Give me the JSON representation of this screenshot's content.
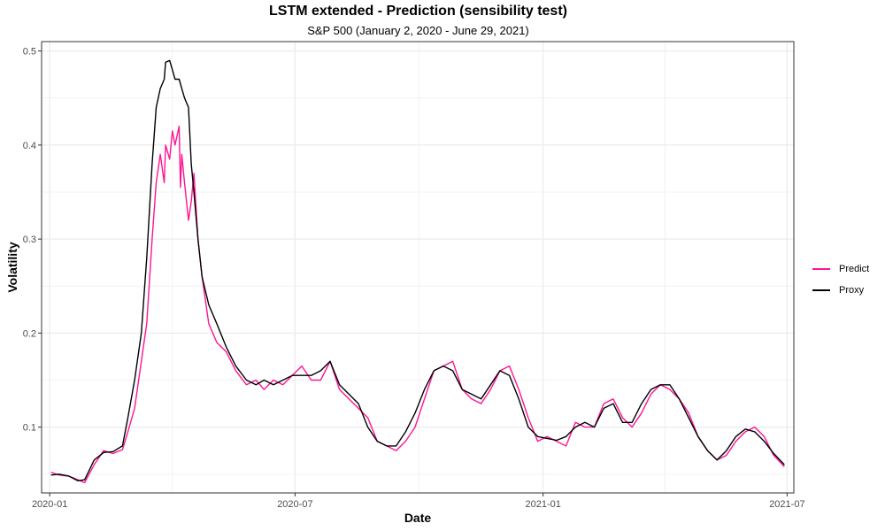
{
  "chart_data": {
    "type": "line",
    "title": "LSTM extended - Prediction (sensibility test)",
    "subtitle": "S&P 500 (January 2, 2020 - June 29, 2021)",
    "xlabel": "Date",
    "ylabel": "Volatility",
    "xlim": [
      "2019-12-26",
      "2021-07-06"
    ],
    "ylim": [
      0.03,
      0.51
    ],
    "x_ticks": [
      "2020-01-01",
      "2020-07-01",
      "2021-01-01",
      "2021-07-01"
    ],
    "x_tick_labels": [
      "2020-01",
      "2020-07",
      "2021-01",
      "2021-07"
    ],
    "y_ticks": [
      0.1,
      0.2,
      0.3,
      0.4,
      0.5
    ],
    "y_tick_labels": [
      "0.1",
      "0.2",
      "0.3",
      "0.4",
      "0.5"
    ],
    "grid": true,
    "legend_position": "right",
    "series": [
      {
        "name": "Predict",
        "color": "#ff1493",
        "points": [
          [
            "2020-01-02",
            0.052
          ],
          [
            "2020-01-08",
            0.049
          ],
          [
            "2020-01-15",
            0.048
          ],
          [
            "2020-01-22",
            0.044
          ],
          [
            "2020-01-27",
            0.041
          ],
          [
            "2020-02-03",
            0.06
          ],
          [
            "2020-02-10",
            0.075
          ],
          [
            "2020-02-17",
            0.072
          ],
          [
            "2020-02-24",
            0.076
          ],
          [
            "2020-02-28",
            0.095
          ],
          [
            "2020-03-04",
            0.12
          ],
          [
            "2020-03-09",
            0.17
          ],
          [
            "2020-03-13",
            0.21
          ],
          [
            "2020-03-17",
            0.3
          ],
          [
            "2020-03-20",
            0.36
          ],
          [
            "2020-03-23",
            0.39
          ],
          [
            "2020-03-26",
            0.36
          ],
          [
            "2020-03-27",
            0.4
          ],
          [
            "2020-03-30",
            0.385
          ],
          [
            "2020-04-01",
            0.415
          ],
          [
            "2020-04-03",
            0.4
          ],
          [
            "2020-04-06",
            0.42
          ],
          [
            "2020-04-07",
            0.355
          ],
          [
            "2020-04-08",
            0.39
          ],
          [
            "2020-04-10",
            0.36
          ],
          [
            "2020-04-13",
            0.32
          ],
          [
            "2020-04-15",
            0.34
          ],
          [
            "2020-04-17",
            0.37
          ],
          [
            "2020-04-20",
            0.3
          ],
          [
            "2020-04-23",
            0.26
          ],
          [
            "2020-04-28",
            0.21
          ],
          [
            "2020-05-04",
            0.19
          ],
          [
            "2020-05-11",
            0.18
          ],
          [
            "2020-05-18",
            0.16
          ],
          [
            "2020-05-26",
            0.145
          ],
          [
            "2020-06-02",
            0.15
          ],
          [
            "2020-06-08",
            0.14
          ],
          [
            "2020-06-15",
            0.15
          ],
          [
            "2020-06-22",
            0.145
          ],
          [
            "2020-06-29",
            0.155
          ],
          [
            "2020-07-06",
            0.165
          ],
          [
            "2020-07-13",
            0.15
          ],
          [
            "2020-07-20",
            0.15
          ],
          [
            "2020-07-27",
            0.17
          ],
          [
            "2020-08-03",
            0.14
          ],
          [
            "2020-08-10",
            0.13
          ],
          [
            "2020-08-17",
            0.12
          ],
          [
            "2020-08-24",
            0.11
          ],
          [
            "2020-08-31",
            0.085
          ],
          [
            "2020-09-07",
            0.08
          ],
          [
            "2020-09-14",
            0.075
          ],
          [
            "2020-09-21",
            0.085
          ],
          [
            "2020-09-28",
            0.1
          ],
          [
            "2020-10-05",
            0.13
          ],
          [
            "2020-10-12",
            0.16
          ],
          [
            "2020-10-19",
            0.165
          ],
          [
            "2020-10-26",
            0.17
          ],
          [
            "2020-11-02",
            0.14
          ],
          [
            "2020-11-09",
            0.13
          ],
          [
            "2020-11-16",
            0.125
          ],
          [
            "2020-11-23",
            0.14
          ],
          [
            "2020-11-30",
            0.16
          ],
          [
            "2020-12-07",
            0.165
          ],
          [
            "2020-12-14",
            0.14
          ],
          [
            "2020-12-21",
            0.11
          ],
          [
            "2020-12-28",
            0.085
          ],
          [
            "2021-01-04",
            0.09
          ],
          [
            "2021-01-11",
            0.085
          ],
          [
            "2021-01-18",
            0.08
          ],
          [
            "2021-01-25",
            0.105
          ],
          [
            "2021-02-01",
            0.1
          ],
          [
            "2021-02-08",
            0.1
          ],
          [
            "2021-02-15",
            0.125
          ],
          [
            "2021-02-22",
            0.13
          ],
          [
            "2021-03-01",
            0.11
          ],
          [
            "2021-03-08",
            0.1
          ],
          [
            "2021-03-15",
            0.115
          ],
          [
            "2021-03-22",
            0.135
          ],
          [
            "2021-03-29",
            0.145
          ],
          [
            "2021-04-05",
            0.14
          ],
          [
            "2021-04-12",
            0.13
          ],
          [
            "2021-04-19",
            0.115
          ],
          [
            "2021-04-26",
            0.09
          ],
          [
            "2021-05-03",
            0.075
          ],
          [
            "2021-05-10",
            0.065
          ],
          [
            "2021-05-17",
            0.07
          ],
          [
            "2021-05-24",
            0.085
          ],
          [
            "2021-05-31",
            0.095
          ],
          [
            "2021-06-07",
            0.1
          ],
          [
            "2021-06-14",
            0.09
          ],
          [
            "2021-06-21",
            0.07
          ],
          [
            "2021-06-29",
            0.058
          ]
        ]
      },
      {
        "name": "Proxy",
        "color": "#000000",
        "points": [
          [
            "2020-01-02",
            0.049
          ],
          [
            "2020-01-08",
            0.05
          ],
          [
            "2020-01-15",
            0.048
          ],
          [
            "2020-01-22",
            0.043
          ],
          [
            "2020-01-27",
            0.044
          ],
          [
            "2020-02-03",
            0.065
          ],
          [
            "2020-02-10",
            0.073
          ],
          [
            "2020-02-17",
            0.074
          ],
          [
            "2020-02-24",
            0.08
          ],
          [
            "2020-02-28",
            0.11
          ],
          [
            "2020-03-04",
            0.15
          ],
          [
            "2020-03-09",
            0.2
          ],
          [
            "2020-03-13",
            0.28
          ],
          [
            "2020-03-17",
            0.38
          ],
          [
            "2020-03-20",
            0.44
          ],
          [
            "2020-03-23",
            0.46
          ],
          [
            "2020-03-26",
            0.47
          ],
          [
            "2020-03-27",
            0.488
          ],
          [
            "2020-03-30",
            0.49
          ],
          [
            "2020-04-01",
            0.48
          ],
          [
            "2020-04-03",
            0.47
          ],
          [
            "2020-04-06",
            0.47
          ],
          [
            "2020-04-08",
            0.46
          ],
          [
            "2020-04-10",
            0.45
          ],
          [
            "2020-04-13",
            0.44
          ],
          [
            "2020-04-15",
            0.38
          ],
          [
            "2020-04-17",
            0.35
          ],
          [
            "2020-04-20",
            0.3
          ],
          [
            "2020-04-23",
            0.26
          ],
          [
            "2020-04-28",
            0.23
          ],
          [
            "2020-05-04",
            0.21
          ],
          [
            "2020-05-11",
            0.185
          ],
          [
            "2020-05-18",
            0.165
          ],
          [
            "2020-05-26",
            0.15
          ],
          [
            "2020-06-02",
            0.145
          ],
          [
            "2020-06-08",
            0.15
          ],
          [
            "2020-06-15",
            0.145
          ],
          [
            "2020-06-22",
            0.15
          ],
          [
            "2020-06-29",
            0.155
          ],
          [
            "2020-07-06",
            0.155
          ],
          [
            "2020-07-13",
            0.155
          ],
          [
            "2020-07-20",
            0.16
          ],
          [
            "2020-07-27",
            0.17
          ],
          [
            "2020-08-03",
            0.145
          ],
          [
            "2020-08-10",
            0.135
          ],
          [
            "2020-08-17",
            0.125
          ],
          [
            "2020-08-24",
            0.1
          ],
          [
            "2020-08-31",
            0.085
          ],
          [
            "2020-09-07",
            0.08
          ],
          [
            "2020-09-14",
            0.08
          ],
          [
            "2020-09-21",
            0.095
          ],
          [
            "2020-09-28",
            0.115
          ],
          [
            "2020-10-05",
            0.14
          ],
          [
            "2020-10-12",
            0.16
          ],
          [
            "2020-10-19",
            0.165
          ],
          [
            "2020-10-26",
            0.16
          ],
          [
            "2020-11-02",
            0.14
          ],
          [
            "2020-11-09",
            0.135
          ],
          [
            "2020-11-16",
            0.13
          ],
          [
            "2020-11-23",
            0.145
          ],
          [
            "2020-11-30",
            0.16
          ],
          [
            "2020-12-07",
            0.155
          ],
          [
            "2020-12-14",
            0.13
          ],
          [
            "2020-12-21",
            0.1
          ],
          [
            "2020-12-28",
            0.09
          ],
          [
            "2021-01-04",
            0.088
          ],
          [
            "2021-01-11",
            0.086
          ],
          [
            "2021-01-18",
            0.09
          ],
          [
            "2021-01-25",
            0.1
          ],
          [
            "2021-02-01",
            0.105
          ],
          [
            "2021-02-08",
            0.1
          ],
          [
            "2021-02-15",
            0.12
          ],
          [
            "2021-02-22",
            0.125
          ],
          [
            "2021-03-01",
            0.105
          ],
          [
            "2021-03-08",
            0.105
          ],
          [
            "2021-03-15",
            0.125
          ],
          [
            "2021-03-22",
            0.14
          ],
          [
            "2021-03-29",
            0.145
          ],
          [
            "2021-04-05",
            0.145
          ],
          [
            "2021-04-12",
            0.13
          ],
          [
            "2021-04-19",
            0.11
          ],
          [
            "2021-04-26",
            0.09
          ],
          [
            "2021-05-03",
            0.075
          ],
          [
            "2021-05-10",
            0.065
          ],
          [
            "2021-05-17",
            0.075
          ],
          [
            "2021-05-24",
            0.09
          ],
          [
            "2021-05-31",
            0.098
          ],
          [
            "2021-06-07",
            0.095
          ],
          [
            "2021-06-14",
            0.085
          ],
          [
            "2021-06-21",
            0.072
          ],
          [
            "2021-06-29",
            0.06
          ]
        ]
      }
    ]
  }
}
